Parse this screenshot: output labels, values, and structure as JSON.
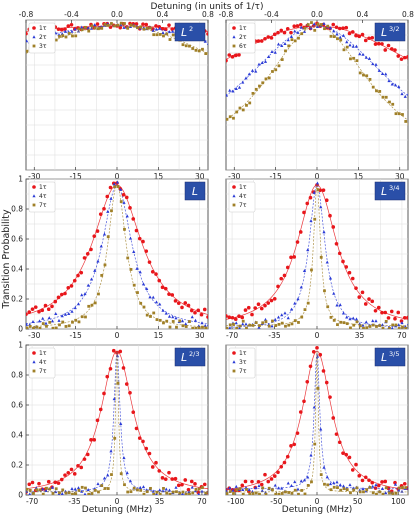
{
  "figure": {
    "top_axis_label": "Detuning (in units of 1/τ)",
    "y_label": "Transition Probability",
    "x_label": "Detuning (MHz)"
  },
  "chart_data": [
    {
      "type": "scatter",
      "badge": "L",
      "badge_sup": "2",
      "xlim": [
        -33,
        33
      ],
      "ylim": [
        0,
        1
      ],
      "xticks": [
        -30,
        -15,
        0,
        15,
        30
      ],
      "top_xlim": [
        -0.8,
        0.8
      ],
      "top_xticks": [
        "-0.8",
        "-0.4",
        "0.0",
        "0.4",
        "0.8"
      ],
      "yticks": [],
      "grid": true,
      "legend": "top-left",
      "series": [
        {
          "name": "1τ",
          "color": "#e8161b",
          "marker": "circle",
          "width": 166,
          "base": 0.0,
          "noise": 0.012
        },
        {
          "name": "2τ",
          "color": "#2b3bd6",
          "marker": "triangle",
          "width": 95,
          "base": 0.0,
          "noise": 0.012
        },
        {
          "name": "3τ",
          "color": "#a08028",
          "marker": "square",
          "width": 68,
          "base": 0.0,
          "noise": 0.015
        }
      ]
    },
    {
      "type": "scatter",
      "badge": "L",
      "badge_sup": "3/2",
      "xlim": [
        -33,
        33
      ],
      "ylim": [
        0,
        1
      ],
      "xticks": [
        -30,
        -15,
        0,
        15,
        30
      ],
      "top_xlim": [
        -0.8,
        0.8
      ],
      "top_xticks": [
        "-0.8",
        "-0.4",
        "0.0",
        "0.4",
        "0.8"
      ],
      "yticks": [],
      "grid": true,
      "legend": "top-left",
      "series": [
        {
          "name": "1τ",
          "color": "#e8161b",
          "marker": "circle",
          "width": 60,
          "base": 0.0,
          "noise": 0.015
        },
        {
          "name": "2τ",
          "color": "#2b3bd6",
          "marker": "triangle",
          "width": 34,
          "base": 0.0,
          "noise": 0.015
        },
        {
          "name": "6τ",
          "color": "#a08028",
          "marker": "square",
          "width": 24,
          "base": 0.0,
          "noise": 0.02
        }
      ]
    },
    {
      "type": "scatter",
      "badge": "L",
      "badge_sup": "",
      "xlim": [
        -33,
        33
      ],
      "ylim": [
        0,
        1
      ],
      "xticks": [
        -30,
        -15,
        0,
        15,
        30
      ],
      "yticks": [
        "0",
        "0.2",
        "0.4",
        "0.6",
        "0.8",
        "1"
      ],
      "grid": true,
      "legend": "top-left",
      "series": [
        {
          "name": "1τ",
          "color": "#e8161b",
          "marker": "circle",
          "width": 11,
          "base": 0.0,
          "noise": 0.02
        },
        {
          "name": "4τ",
          "color": "#2b3bd6",
          "marker": "triangle",
          "width": 6.5,
          "base": 0.0,
          "noise": 0.02
        },
        {
          "name": "7τ",
          "color": "#a08028",
          "marker": "square",
          "width": 4,
          "base": 0.0,
          "noise": 0.02
        }
      ]
    },
    {
      "type": "scatter",
      "badge": "L",
      "badge_sup": "3/4",
      "xlim": [
        -75,
        75
      ],
      "ylim": [
        0,
        1
      ],
      "xticks": [
        -70,
        -35,
        0,
        35,
        70
      ],
      "yticks": [],
      "grid": true,
      "legend": "top-left",
      "series": [
        {
          "name": "1τ",
          "color": "#e8161b",
          "marker": "circle",
          "width": 20,
          "base": 0.0,
          "noise": 0.025
        },
        {
          "name": "4τ",
          "color": "#2b3bd6",
          "marker": "triangle",
          "width": 8,
          "base": 0.0,
          "noise": 0.02
        },
        {
          "name": "7τ",
          "color": "#a08028",
          "marker": "square",
          "width": 3.5,
          "base": 0.02,
          "noise": 0.02
        }
      ]
    },
    {
      "type": "scatter",
      "badge": "L",
      "badge_sup": "2/3",
      "xlim": [
        -75,
        75
      ],
      "ylim": [
        0,
        1
      ],
      "xticks": [
        -70,
        -35,
        0,
        35,
        70
      ],
      "yticks": [
        "0",
        "0.2",
        "0.4",
        "0.6",
        "0.8",
        "1"
      ],
      "grid": true,
      "legend": "top-left",
      "series": [
        {
          "name": "1τ",
          "color": "#e8161b",
          "marker": "circle",
          "width": 16,
          "base": 0.0,
          "noise": 0.025
        },
        {
          "name": "4τ",
          "color": "#2b3bd6",
          "marker": "triangle",
          "width": 3,
          "base": 0.02,
          "noise": 0.02
        },
        {
          "name": "7τ",
          "color": "#a08028",
          "marker": "square",
          "width": 1.5,
          "base": 0.02,
          "noise": 0.02
        }
      ]
    },
    {
      "type": "scatter",
      "badge": "L",
      "badge_sup": "3/5",
      "xlim": [
        -112,
        112
      ],
      "ylim": [
        0,
        1
      ],
      "xticks": [
        -100,
        -50,
        0,
        50,
        100
      ],
      "yticks": [],
      "grid": true,
      "legend": "top-left",
      "series": [
        {
          "name": "1τ",
          "color": "#e8161b",
          "marker": "circle",
          "width": 22,
          "base": 0.0,
          "noise": 0.025
        },
        {
          "name": "3τ",
          "color": "#2b3bd6",
          "marker": "triangle",
          "width": 4,
          "base": 0.04,
          "noise": 0.02
        },
        {
          "name": "7τ",
          "color": "#a08028",
          "marker": "square",
          "width": 2,
          "base": 0.02,
          "noise": 0.02
        }
      ]
    }
  ]
}
